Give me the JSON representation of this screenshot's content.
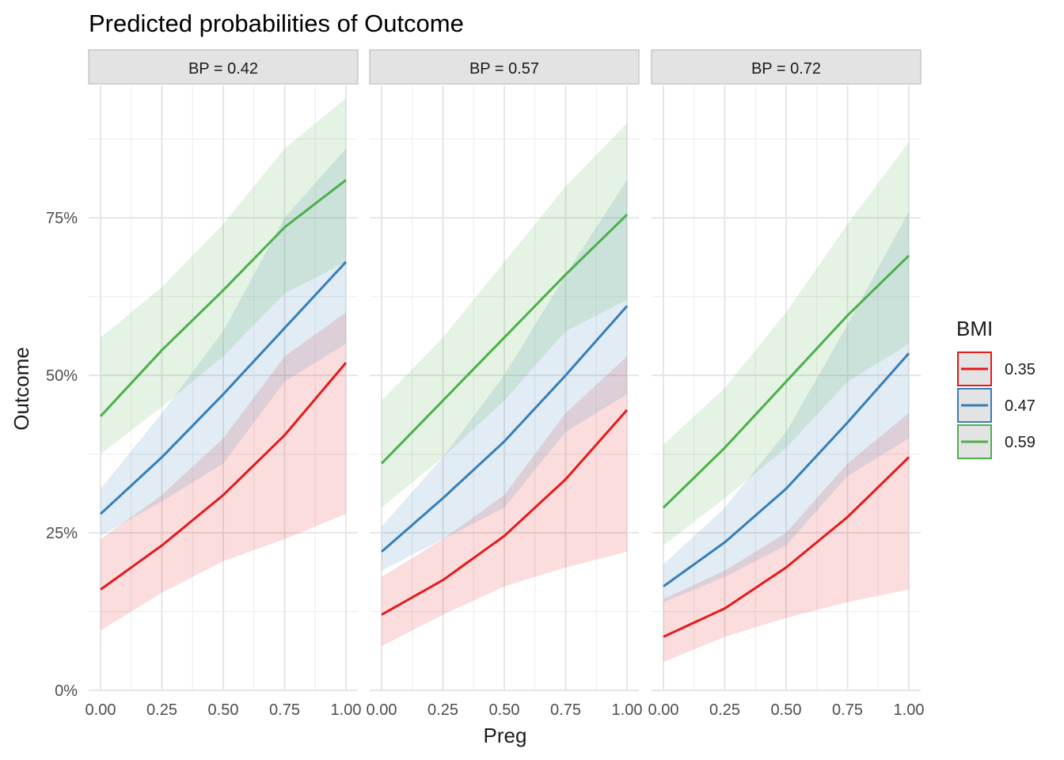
{
  "chart_data": {
    "type": "line",
    "title": "Predicted probabilities of Outcome",
    "xlabel": "Preg",
    "ylabel": "Outcome",
    "x_ticks": [
      0,
      0.25,
      0.5,
      0.75,
      1
    ],
    "x_tick_labels": [
      "0.00",
      "0.25",
      "0.50",
      "0.75",
      "1.00"
    ],
    "y_ticks": [
      0,
      0.25,
      0.5,
      0.75
    ],
    "y_tick_labels": [
      "0%",
      "25%",
      "50%",
      "75%"
    ],
    "xlim": [
      0,
      1
    ],
    "ylim": [
      0,
      0.96
    ],
    "grid": true,
    "legend": {
      "title": "BMI",
      "position": "right",
      "entries": [
        "0.35",
        "0.47",
        "0.59"
      ]
    },
    "colors": [
      "#e41a1c",
      "#377eb8",
      "#4daf4a"
    ],
    "panels": [
      {
        "label": "BP = 0.42",
        "series": [
          {
            "name": "0.35",
            "x": [
              0,
              0.25,
              0.5,
              0.75,
              1
            ],
            "y": [
              0.16,
              0.23,
              0.31,
              0.405,
              0.52
            ],
            "lower": [
              0.095,
              0.155,
              0.205,
              0.24,
              0.28
            ],
            "upper": [
              0.24,
              0.31,
              0.4,
              0.53,
              0.6
            ]
          },
          {
            "name": "0.47",
            "x": [
              0,
              0.25,
              0.5,
              0.75,
              1
            ],
            "y": [
              0.28,
              0.37,
              0.47,
              0.575,
              0.68
            ],
            "lower": [
              0.245,
              0.3,
              0.36,
              0.49,
              0.55
            ],
            "upper": [
              0.32,
              0.44,
              0.57,
              0.75,
              0.86
            ]
          },
          {
            "name": "0.59",
            "x": [
              0,
              0.25,
              0.5,
              0.75,
              1
            ],
            "y": [
              0.435,
              0.54,
              0.635,
              0.735,
              0.81
            ],
            "lower": [
              0.375,
              0.45,
              0.53,
              0.63,
              0.68
            ],
            "upper": [
              0.56,
              0.64,
              0.74,
              0.86,
              0.94
            ]
          }
        ]
      },
      {
        "label": "BP = 0.57",
        "series": [
          {
            "name": "0.35",
            "x": [
              0,
              0.25,
              0.5,
              0.75,
              1
            ],
            "y": [
              0.12,
              0.175,
              0.245,
              0.335,
              0.445
            ],
            "lower": [
              0.07,
              0.12,
              0.165,
              0.195,
              0.22
            ],
            "upper": [
              0.18,
              0.24,
              0.31,
              0.44,
              0.53
            ]
          },
          {
            "name": "0.47",
            "x": [
              0,
              0.25,
              0.5,
              0.75,
              1
            ],
            "y": [
              0.22,
              0.305,
              0.395,
              0.5,
              0.61
            ],
            "lower": [
              0.19,
              0.24,
              0.29,
              0.41,
              0.47
            ],
            "upper": [
              0.26,
              0.37,
              0.5,
              0.66,
              0.81
            ]
          },
          {
            "name": "0.59",
            "x": [
              0,
              0.25,
              0.5,
              0.75,
              1
            ],
            "y": [
              0.36,
              0.46,
              0.56,
              0.66,
              0.755
            ],
            "lower": [
              0.29,
              0.37,
              0.46,
              0.57,
              0.62
            ],
            "upper": [
              0.46,
              0.56,
              0.68,
              0.8,
              0.9
            ]
          }
        ]
      },
      {
        "label": "BP = 0.72",
        "series": [
          {
            "name": "0.35",
            "x": [
              0,
              0.25,
              0.5,
              0.75,
              1
            ],
            "y": [
              0.085,
              0.13,
              0.195,
              0.275,
              0.37
            ],
            "lower": [
              0.045,
              0.085,
              0.115,
              0.14,
              0.16
            ],
            "upper": [
              0.145,
              0.19,
              0.25,
              0.36,
              0.44
            ]
          },
          {
            "name": "0.47",
            "x": [
              0,
              0.25,
              0.5,
              0.75,
              1
            ],
            "y": [
              0.165,
              0.235,
              0.32,
              0.425,
              0.535
            ],
            "lower": [
              0.14,
              0.18,
              0.23,
              0.34,
              0.4
            ],
            "upper": [
              0.2,
              0.29,
              0.41,
              0.58,
              0.76
            ]
          },
          {
            "name": "0.59",
            "x": [
              0,
              0.25,
              0.5,
              0.75,
              1
            ],
            "y": [
              0.29,
              0.385,
              0.49,
              0.595,
              0.69
            ],
            "lower": [
              0.23,
              0.305,
              0.385,
              0.49,
              0.55
            ],
            "upper": [
              0.39,
              0.48,
              0.6,
              0.74,
              0.87
            ]
          }
        ]
      }
    ]
  }
}
